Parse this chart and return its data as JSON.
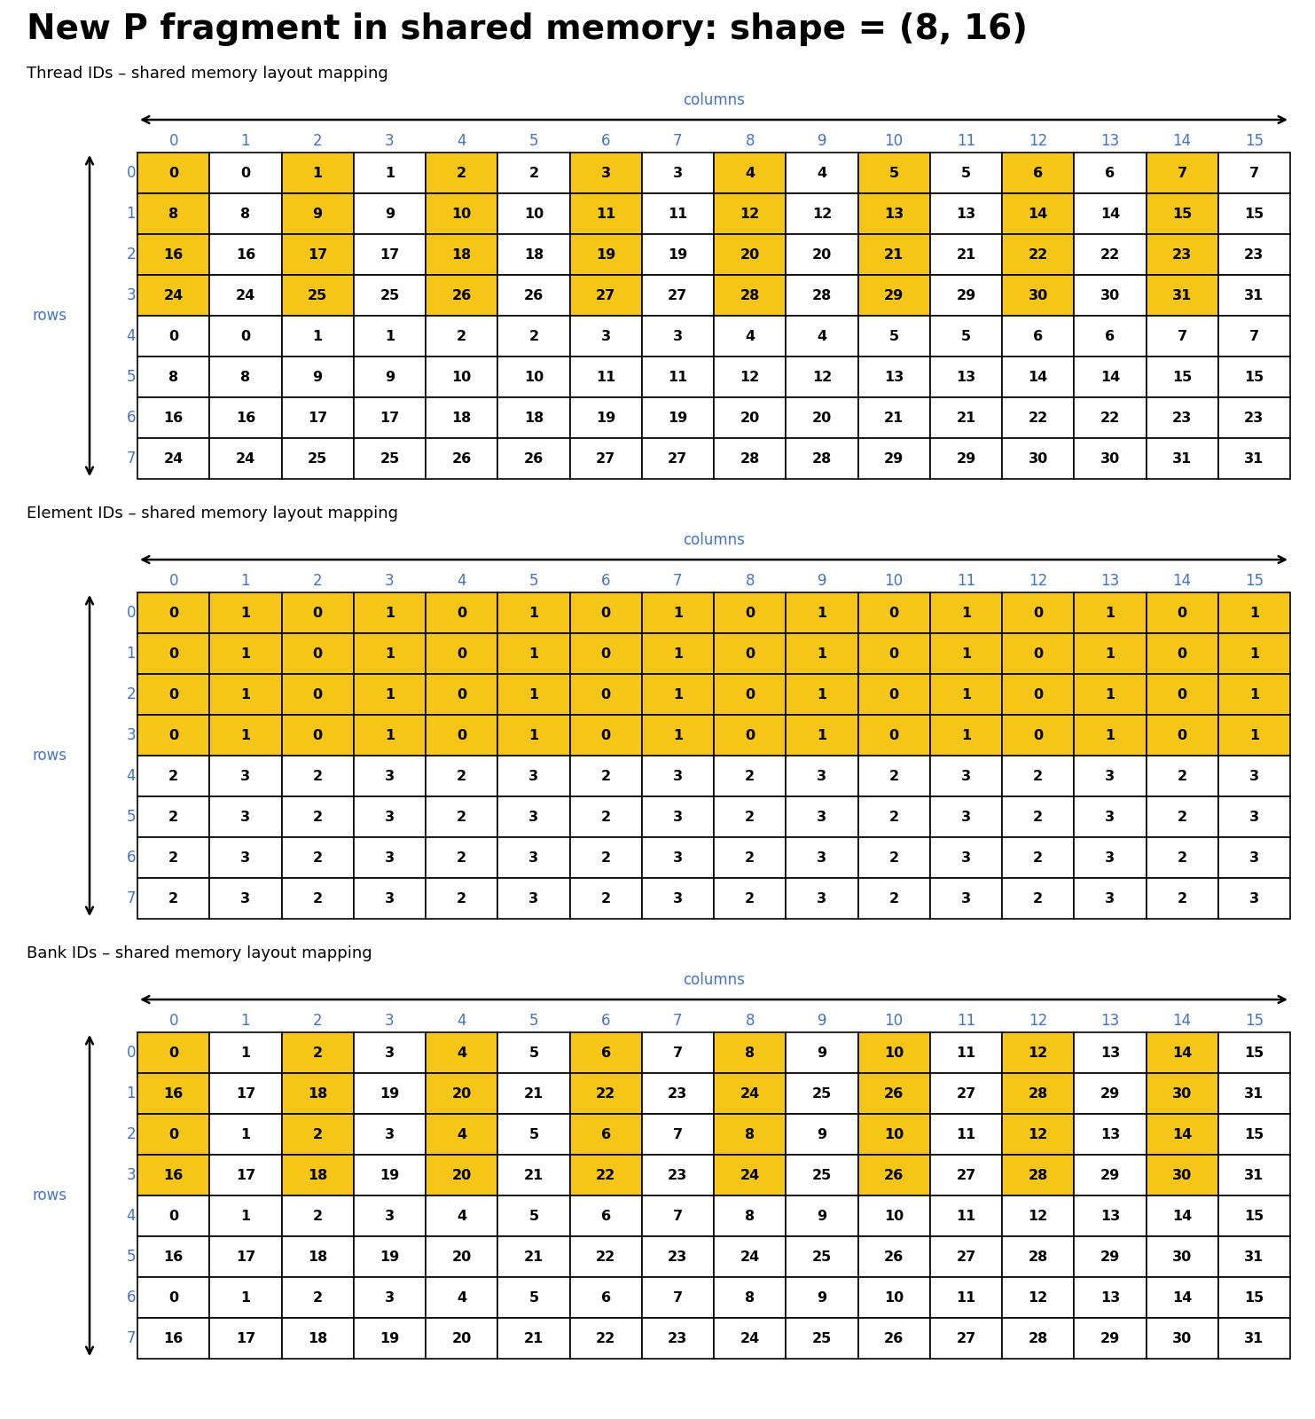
{
  "title": "New P fragment in shared memory: shape = (8, 16)",
  "title_fontsize": 28,
  "subtitle_fontsize": 13,
  "cell_fontsize": 11.5,
  "col_header_fontsize": 12,
  "row_header_fontsize": 12,
  "gold_color": "#F5C518",
  "white_color": "#FFFFFF",
  "blue_color": "#4472C4",
  "black_color": "#000000",
  "fig_width": 14.83,
  "fig_height": 16.0,
  "dpi": 100,
  "tables": [
    {
      "subtitle": "Thread IDs – shared memory layout mapping",
      "data": [
        [
          0,
          0,
          1,
          1,
          2,
          2,
          3,
          3,
          4,
          4,
          5,
          5,
          6,
          6,
          7,
          7
        ],
        [
          8,
          8,
          9,
          9,
          10,
          10,
          11,
          11,
          12,
          12,
          13,
          13,
          14,
          14,
          15,
          15
        ],
        [
          16,
          16,
          17,
          17,
          18,
          18,
          19,
          19,
          20,
          20,
          21,
          21,
          22,
          22,
          23,
          23
        ],
        [
          24,
          24,
          25,
          25,
          26,
          26,
          27,
          27,
          28,
          28,
          29,
          29,
          30,
          30,
          31,
          31
        ],
        [
          0,
          0,
          1,
          1,
          2,
          2,
          3,
          3,
          4,
          4,
          5,
          5,
          6,
          6,
          7,
          7
        ],
        [
          8,
          8,
          9,
          9,
          10,
          10,
          11,
          11,
          12,
          12,
          13,
          13,
          14,
          14,
          15,
          15
        ],
        [
          16,
          16,
          17,
          17,
          18,
          18,
          19,
          19,
          20,
          20,
          21,
          21,
          22,
          22,
          23,
          23
        ],
        [
          24,
          24,
          25,
          25,
          26,
          26,
          27,
          27,
          28,
          28,
          29,
          29,
          30,
          30,
          31,
          31
        ]
      ],
      "highlight": [
        [
          1,
          0,
          1,
          0,
          1,
          0,
          1,
          0,
          1,
          0,
          1,
          0,
          1,
          0,
          1,
          0
        ],
        [
          1,
          0,
          1,
          0,
          1,
          0,
          1,
          0,
          1,
          0,
          1,
          0,
          1,
          0,
          1,
          0
        ],
        [
          1,
          0,
          1,
          0,
          1,
          0,
          1,
          0,
          1,
          0,
          1,
          0,
          1,
          0,
          1,
          0
        ],
        [
          1,
          0,
          1,
          0,
          1,
          0,
          1,
          0,
          1,
          0,
          1,
          0,
          1,
          0,
          1,
          0
        ],
        [
          0,
          0,
          0,
          0,
          0,
          0,
          0,
          0,
          0,
          0,
          0,
          0,
          0,
          0,
          0,
          0
        ],
        [
          0,
          0,
          0,
          0,
          0,
          0,
          0,
          0,
          0,
          0,
          0,
          0,
          0,
          0,
          0,
          0
        ],
        [
          0,
          0,
          0,
          0,
          0,
          0,
          0,
          0,
          0,
          0,
          0,
          0,
          0,
          0,
          0,
          0
        ],
        [
          0,
          0,
          0,
          0,
          0,
          0,
          0,
          0,
          0,
          0,
          0,
          0,
          0,
          0,
          0,
          0
        ]
      ]
    },
    {
      "subtitle": "Element IDs – shared memory layout mapping",
      "data": [
        [
          0,
          1,
          0,
          1,
          0,
          1,
          0,
          1,
          0,
          1,
          0,
          1,
          0,
          1,
          0,
          1
        ],
        [
          0,
          1,
          0,
          1,
          0,
          1,
          0,
          1,
          0,
          1,
          0,
          1,
          0,
          1,
          0,
          1
        ],
        [
          0,
          1,
          0,
          1,
          0,
          1,
          0,
          1,
          0,
          1,
          0,
          1,
          0,
          1,
          0,
          1
        ],
        [
          0,
          1,
          0,
          1,
          0,
          1,
          0,
          1,
          0,
          1,
          0,
          1,
          0,
          1,
          0,
          1
        ],
        [
          2,
          3,
          2,
          3,
          2,
          3,
          2,
          3,
          2,
          3,
          2,
          3,
          2,
          3,
          2,
          3
        ],
        [
          2,
          3,
          2,
          3,
          2,
          3,
          2,
          3,
          2,
          3,
          2,
          3,
          2,
          3,
          2,
          3
        ],
        [
          2,
          3,
          2,
          3,
          2,
          3,
          2,
          3,
          2,
          3,
          2,
          3,
          2,
          3,
          2,
          3
        ],
        [
          2,
          3,
          2,
          3,
          2,
          3,
          2,
          3,
          2,
          3,
          2,
          3,
          2,
          3,
          2,
          3
        ]
      ],
      "highlight": [
        [
          1,
          1,
          1,
          1,
          1,
          1,
          1,
          1,
          1,
          1,
          1,
          1,
          1,
          1,
          1,
          1
        ],
        [
          1,
          1,
          1,
          1,
          1,
          1,
          1,
          1,
          1,
          1,
          1,
          1,
          1,
          1,
          1,
          1
        ],
        [
          1,
          1,
          1,
          1,
          1,
          1,
          1,
          1,
          1,
          1,
          1,
          1,
          1,
          1,
          1,
          1
        ],
        [
          1,
          1,
          1,
          1,
          1,
          1,
          1,
          1,
          1,
          1,
          1,
          1,
          1,
          1,
          1,
          1
        ],
        [
          0,
          0,
          0,
          0,
          0,
          0,
          0,
          0,
          0,
          0,
          0,
          0,
          0,
          0,
          0,
          0
        ],
        [
          0,
          0,
          0,
          0,
          0,
          0,
          0,
          0,
          0,
          0,
          0,
          0,
          0,
          0,
          0,
          0
        ],
        [
          0,
          0,
          0,
          0,
          0,
          0,
          0,
          0,
          0,
          0,
          0,
          0,
          0,
          0,
          0,
          0
        ],
        [
          0,
          0,
          0,
          0,
          0,
          0,
          0,
          0,
          0,
          0,
          0,
          0,
          0,
          0,
          0,
          0
        ]
      ]
    },
    {
      "subtitle": "Bank IDs – shared memory layout mapping",
      "data": [
        [
          0,
          1,
          2,
          3,
          4,
          5,
          6,
          7,
          8,
          9,
          10,
          11,
          12,
          13,
          14,
          15
        ],
        [
          16,
          17,
          18,
          19,
          20,
          21,
          22,
          23,
          24,
          25,
          26,
          27,
          28,
          29,
          30,
          31
        ],
        [
          0,
          1,
          2,
          3,
          4,
          5,
          6,
          7,
          8,
          9,
          10,
          11,
          12,
          13,
          14,
          15
        ],
        [
          16,
          17,
          18,
          19,
          20,
          21,
          22,
          23,
          24,
          25,
          26,
          27,
          28,
          29,
          30,
          31
        ],
        [
          0,
          1,
          2,
          3,
          4,
          5,
          6,
          7,
          8,
          9,
          10,
          11,
          12,
          13,
          14,
          15
        ],
        [
          16,
          17,
          18,
          19,
          20,
          21,
          22,
          23,
          24,
          25,
          26,
          27,
          28,
          29,
          30,
          31
        ],
        [
          0,
          1,
          2,
          3,
          4,
          5,
          6,
          7,
          8,
          9,
          10,
          11,
          12,
          13,
          14,
          15
        ],
        [
          16,
          17,
          18,
          19,
          20,
          21,
          22,
          23,
          24,
          25,
          26,
          27,
          28,
          29,
          30,
          31
        ]
      ],
      "highlight": [
        [
          1,
          0,
          1,
          0,
          1,
          0,
          1,
          0,
          1,
          0,
          1,
          0,
          1,
          0,
          1,
          0
        ],
        [
          1,
          0,
          1,
          0,
          1,
          0,
          1,
          0,
          1,
          0,
          1,
          0,
          1,
          0,
          1,
          0
        ],
        [
          1,
          0,
          1,
          0,
          1,
          0,
          1,
          0,
          1,
          0,
          1,
          0,
          1,
          0,
          1,
          0
        ],
        [
          1,
          0,
          1,
          0,
          1,
          0,
          1,
          0,
          1,
          0,
          1,
          0,
          1,
          0,
          1,
          0
        ],
        [
          0,
          0,
          0,
          0,
          0,
          0,
          0,
          0,
          0,
          0,
          0,
          0,
          0,
          0,
          0,
          0
        ],
        [
          0,
          0,
          0,
          0,
          0,
          0,
          0,
          0,
          0,
          0,
          0,
          0,
          0,
          0,
          0,
          0
        ],
        [
          0,
          0,
          0,
          0,
          0,
          0,
          0,
          0,
          0,
          0,
          0,
          0,
          0,
          0,
          0,
          0
        ],
        [
          0,
          0,
          0,
          0,
          0,
          0,
          0,
          0,
          0,
          0,
          0,
          0,
          0,
          0,
          0,
          0
        ]
      ]
    }
  ]
}
